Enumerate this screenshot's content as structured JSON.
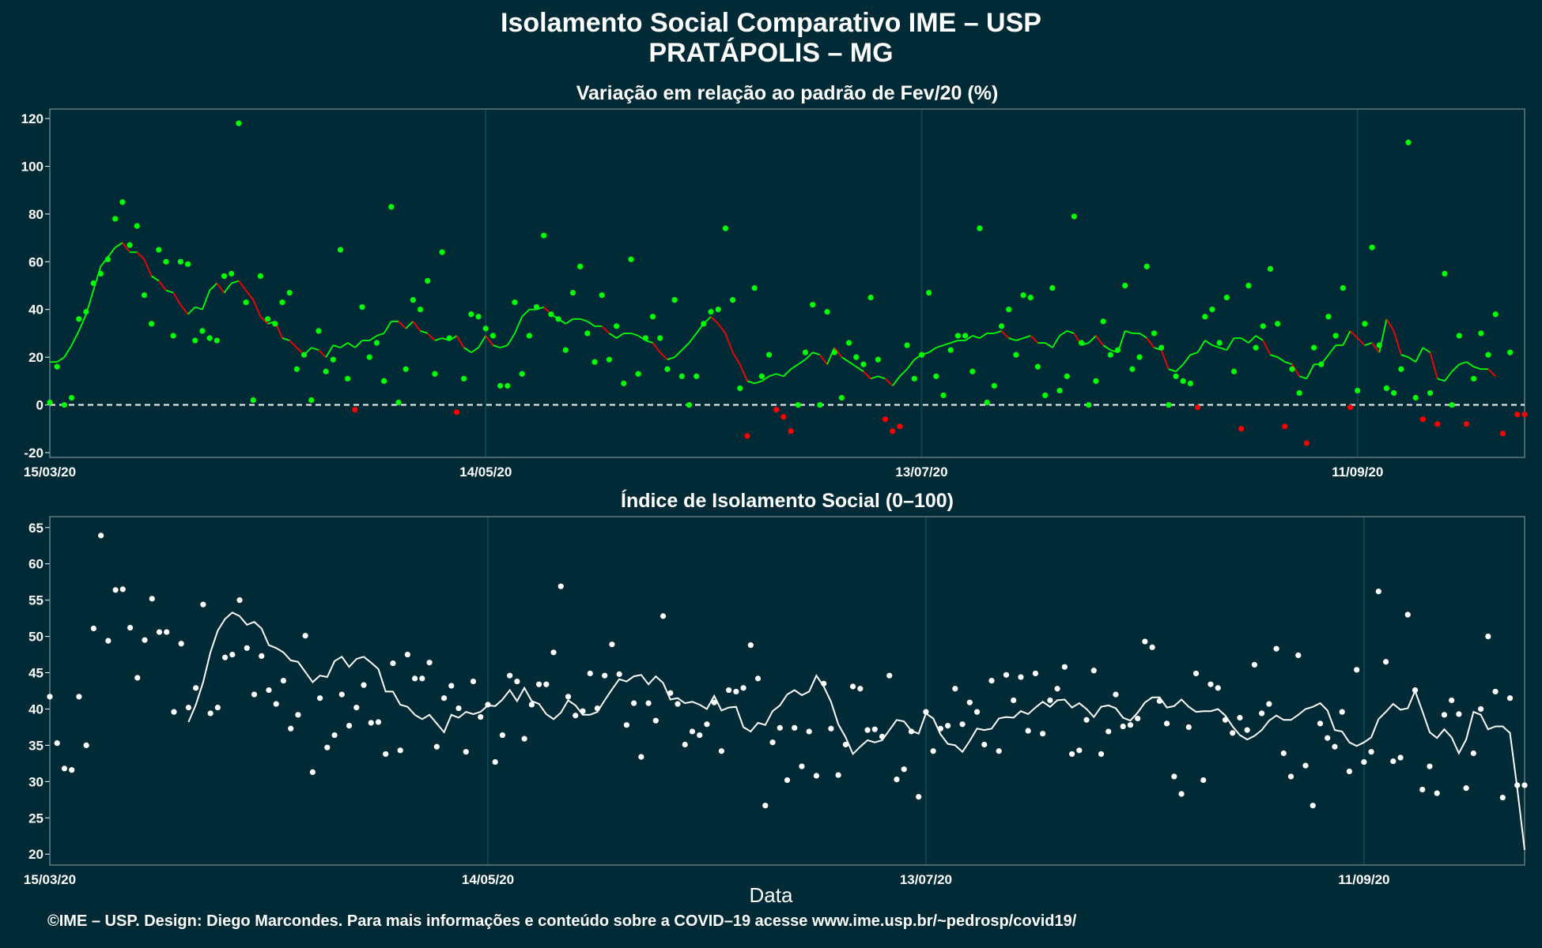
{
  "title": "Isolamento Social Comparativo IME – USP",
  "subtitle": "PRATÁPOLIS – MG",
  "xlabel": "Data",
  "footer": "©IME – USP. Design: Diego Marcondes. Para mais informações e conteúdo sobre a COVID–19 acesse www.ime.usp.br/~pedrosp/covid19/",
  "colors": {
    "background": "#002b36",
    "positive": "#00ff00",
    "negative": "#ff0000",
    "index": "#ffffff",
    "grid": "#0d4a55"
  },
  "chart_data": [
    {
      "type": "scatter",
      "title": "Variação em relação ao padrão de Fev/20 (%)",
      "x_tick_labels": [
        "15/03/20",
        "14/05/20",
        "13/07/20",
        "11/09/20"
      ],
      "x_tick_day_index": [
        0,
        60,
        120,
        180
      ],
      "ylim": [
        -22,
        124
      ],
      "y_ticks": [
        -20,
        0,
        20,
        40,
        60,
        80,
        100,
        120
      ],
      "reference_line": 0,
      "series": [
        {
          "kind": "points",
          "values": [
            1,
            16,
            0,
            3,
            36,
            39,
            51,
            55,
            61,
            78,
            85,
            67,
            75,
            46,
            34,
            65,
            60,
            29,
            60,
            59,
            27,
            31,
            28,
            27,
            54,
            55,
            118,
            43,
            2,
            54,
            36,
            34,
            43,
            47,
            15,
            21,
            2,
            31,
            14,
            19,
            65,
            11,
            -2,
            41,
            20,
            26,
            10,
            83,
            1,
            15,
            44,
            40,
            52,
            13,
            64,
            28,
            -3,
            11,
            38,
            37,
            32,
            29,
            8,
            8,
            43,
            13,
            29,
            41,
            71,
            38,
            36,
            23,
            47,
            58,
            30,
            18,
            46,
            19,
            33,
            9,
            61,
            13,
            28,
            37,
            28,
            15,
            44,
            12,
            0,
            12,
            34,
            39,
            40,
            74,
            44,
            7,
            -13,
            49,
            12,
            21,
            -2,
            -5,
            -11,
            0,
            22,
            42,
            0,
            39,
            22,
            3,
            26,
            20,
            17,
            45,
            19,
            -6,
            -11,
            -9,
            25,
            11,
            21,
            47,
            12,
            4,
            23,
            29,
            29,
            14,
            74,
            1,
            8,
            33,
            40,
            21,
            46,
            45,
            16,
            4,
            49,
            6,
            12,
            79,
            26,
            0,
            10,
            35,
            21,
            23,
            50,
            15,
            20,
            58,
            30,
            24,
            0,
            12,
            10,
            9,
            -1,
            37,
            40,
            26,
            45,
            14,
            -10,
            50,
            24,
            33,
            57,
            34,
            -9,
            15,
            5,
            -16,
            24,
            17,
            37,
            29,
            49,
            -1,
            6,
            34,
            66,
            25,
            7,
            5,
            15,
            110,
            3,
            -6,
            5,
            -8,
            55,
            0,
            29,
            -8,
            11,
            30,
            21,
            38,
            -12,
            22,
            -4,
            -4
          ]
        },
        {
          "kind": "moving_average",
          "values": [
            18,
            18,
            20,
            25,
            31,
            38,
            48,
            58,
            62,
            66,
            68,
            64,
            64,
            61,
            54,
            52,
            48,
            47,
            42,
            38,
            41,
            40,
            48,
            51,
            47,
            51,
            52,
            48,
            44,
            37,
            34,
            35,
            28,
            27,
            24,
            21,
            24,
            23,
            20,
            25,
            24,
            26,
            24,
            27,
            27,
            29,
            30,
            35,
            35,
            32,
            35,
            31,
            30,
            27,
            28,
            27,
            29,
            24,
            22,
            24,
            29,
            25,
            24,
            25,
            30,
            37,
            40,
            40,
            41,
            38,
            36,
            34,
            36,
            36,
            35,
            33,
            33,
            30,
            28,
            30,
            30,
            29,
            27,
            26,
            22,
            19,
            20,
            23,
            26,
            30,
            34,
            37,
            34,
            30,
            22,
            17,
            10,
            9,
            10,
            12,
            13,
            12,
            15,
            17,
            19,
            22,
            21,
            17,
            24,
            20,
            18,
            16,
            14,
            11,
            12,
            11,
            8,
            12,
            15,
            19,
            21,
            22,
            24,
            25,
            26,
            27,
            27,
            29,
            28,
            30,
            30,
            31,
            28,
            27,
            28,
            29,
            26,
            26,
            24,
            29,
            31,
            30,
            25,
            26,
            29,
            25,
            23,
            22,
            31,
            30,
            30,
            28,
            24,
            23,
            15,
            14,
            17,
            21,
            22,
            27,
            25,
            24,
            23,
            28,
            28,
            26,
            29,
            27,
            21,
            20,
            18,
            17,
            12,
            11,
            17,
            17,
            21,
            25,
            25,
            31,
            28,
            25,
            26,
            22,
            36,
            31,
            21,
            20,
            18,
            24,
            22,
            11,
            10,
            14,
            17,
            18,
            16,
            15,
            15,
            12
          ]
        }
      ]
    },
    {
      "type": "scatter",
      "title": "Índice de Isolamento Social (0–100)",
      "x_tick_labels": [
        "15/03/20",
        "14/05/20",
        "13/07/20",
        "11/09/20"
      ],
      "x_tick_day_index": [
        0,
        60,
        120,
        180
      ],
      "ylim": [
        18.5,
        66.5
      ],
      "y_ticks": [
        20,
        25,
        30,
        35,
        40,
        45,
        50,
        55,
        60,
        65
      ],
      "series": [
        {
          "kind": "points",
          "values": [
            41.7,
            35.3,
            31.8,
            31.6,
            41.7,
            35.0,
            51.1,
            63.9,
            49.4,
            56.4,
            56.5,
            51.2,
            44.3,
            49.5,
            55.2,
            50.6,
            50.6,
            39.6,
            49.0,
            40.2,
            42.9,
            54.4,
            39.4,
            40.2,
            47.1,
            47.5,
            55.0,
            48.4,
            42.0,
            47.3,
            42.6,
            40.7,
            43.9,
            37.3,
            39.2,
            50.1,
            31.3,
            41.5,
            34.7,
            36.4,
            42.0,
            37.7,
            40.2,
            43.3,
            38.1,
            38.2,
            33.8,
            46.3,
            34.3,
            47.5,
            44.2,
            44.2,
            46.4,
            34.8,
            41.5,
            43.2,
            40.1,
            34.1,
            43.8,
            38.9,
            40.6,
            32.7,
            36.4,
            44.6,
            43.8,
            35.9,
            40.6,
            43.4,
            43.4,
            47.8,
            56.9,
            41.7,
            39.1,
            39.7,
            44.9,
            40.1,
            44.6,
            48.9,
            44.8,
            37.8,
            40.8,
            33.4,
            40.8,
            38.4,
            52.8,
            42.2,
            40.7,
            35.1,
            36.9,
            36.4,
            37.9,
            40.9,
            34.2,
            42.6,
            42.4,
            42.9,
            48.8,
            44.2,
            26.7,
            35.4,
            37.4,
            30.2,
            37.4,
            32.1,
            36.9,
            30.8,
            43.5,
            37.3,
            30.9,
            35.1,
            43.1,
            42.8,
            37.1,
            37.2,
            36.2,
            44.6,
            30.3,
            31.7,
            36.9,
            27.9,
            39.6,
            34.2,
            37.3,
            37.7,
            42.8,
            37.9,
            40.9,
            39.6,
            35.1,
            43.9,
            34.2,
            44.7,
            41.2,
            44.4,
            37.0,
            44.9,
            36.6,
            41.2,
            42.8,
            45.8,
            33.8,
            34.3,
            38.5,
            45.3,
            33.8,
            36.9,
            42.0,
            37.6,
            37.8,
            38.7,
            49.3,
            48.5,
            41.1,
            38.0,
            30.7,
            28.3,
            37.5,
            44.9,
            30.2,
            43.4,
            42.9,
            38.5,
            36.7,
            38.8,
            37.1,
            46.1,
            39.4,
            40.7,
            48.3,
            33.9,
            30.7,
            47.4,
            32.2,
            26.7,
            38.0,
            36.0,
            34.8,
            39.6,
            31.4,
            45.4,
            32.7,
            34.1,
            56.2,
            46.5,
            32.8,
            33.3,
            53.0,
            42.6,
            28.9,
            32.1,
            28.4,
            39.2,
            41.2,
            39.3,
            29.1,
            33.9,
            40.0,
            50.0,
            42.4,
            27.8,
            41.5,
            29.5,
            29.5
          ]
        },
        {
          "kind": "moving_average",
          "values": [
            38.2,
            40.6,
            43.7,
            47.8,
            50.8,
            52.4,
            53.3,
            52.8,
            51.6,
            52.0,
            51.1,
            48.8,
            48.4,
            47.8,
            46.7,
            46.5,
            45.1,
            43.7,
            44.6,
            44.4,
            46.6,
            47.2,
            45.8,
            46.9,
            47.2,
            46.4,
            45.5,
            42.4,
            42.4,
            40.6,
            40.3,
            39.2,
            38.6,
            39.2,
            38.0,
            36.8,
            39.2,
            38.8,
            39.6,
            39.3,
            39.6,
            40.5,
            40.4,
            41.3,
            42.6,
            41.1,
            42.9,
            41.1,
            40.7,
            39.3,
            38.6,
            39.5,
            41.2,
            40.5,
            39.2,
            39.2,
            39.6,
            41.2,
            42.7,
            44.1,
            43.8,
            44.5,
            44.7,
            43.4,
            44.5,
            43.6,
            41.3,
            41.5,
            40.8,
            41.0,
            40.6,
            40.0,
            41.8,
            39.8,
            40.2,
            40.3,
            37.5,
            36.9,
            38.1,
            37.8,
            39.7,
            40.5,
            42.0,
            42.6,
            41.9,
            42.4,
            44.6,
            43.1,
            41.0,
            37.9,
            36.1,
            33.8,
            34.8,
            35.7,
            35.4,
            35.7,
            37.1,
            38.5,
            38.3,
            37.0,
            36.6,
            39.4,
            38.7,
            36.5,
            35.2,
            35.0,
            34.1,
            35.6,
            37.3,
            37.1,
            37.3,
            38.7,
            38.9,
            38.8,
            39.7,
            39.3,
            40.2,
            41.0,
            40.3,
            41.2,
            41.3,
            40.2,
            40.8,
            40.0,
            38.9,
            40.3,
            40.5,
            40.1,
            38.8,
            38.4,
            39.5,
            40.9,
            41.6,
            41.6,
            40.2,
            40.4,
            41.3,
            40.3,
            39.6,
            39.7,
            39.7,
            40.0,
            39.1,
            37.6,
            36.4,
            35.8,
            36.3,
            37.1,
            38.4,
            39.1,
            38.5,
            38.5,
            39.2,
            40.0,
            40.3,
            40.8,
            39.8,
            37.1,
            36.9,
            35.4,
            34.9,
            35.4,
            36.1,
            38.6,
            39.6,
            40.7,
            39.9,
            40.1,
            42.5,
            39.7,
            36.8,
            36.0,
            37.2,
            36.1,
            33.9,
            35.8,
            39.6,
            39.2,
            37.2,
            37.6,
            37.6,
            36.7,
            29.0,
            20.6
          ]
        }
      ]
    }
  ]
}
